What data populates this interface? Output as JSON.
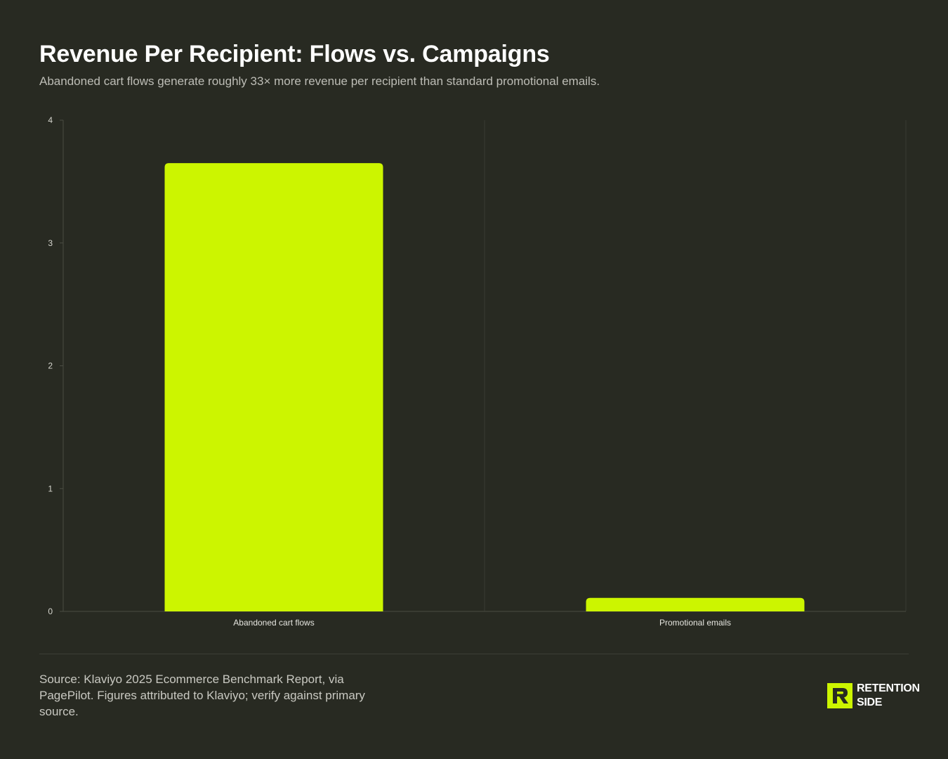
{
  "header": {
    "title": "Revenue Per Recipient: Flows vs. Campaigns",
    "subtitle": "Abandoned cart flows generate roughly 33× more revenue per recipient than standard promotional emails."
  },
  "chart_data": {
    "type": "bar",
    "categories": [
      "Abandoned cart flows",
      "Promotional emails"
    ],
    "values": [
      3.65,
      0.11
    ],
    "ylim": [
      0,
      4
    ],
    "yticks": [
      "0",
      "1",
      "2",
      "3",
      "4"
    ],
    "bar_color": "#ccf500",
    "grid": "vertical category separators",
    "legend": "none"
  },
  "footer": {
    "source": "Source: Klaviyo 2025 Ecommerce Benchmark Report, via PagePilot. Figures attributed to Klaviyo; verify against primary source.",
    "logo_line1": "RETENTION",
    "logo_line2": "SIDE",
    "logo_color": "#ccf500"
  }
}
